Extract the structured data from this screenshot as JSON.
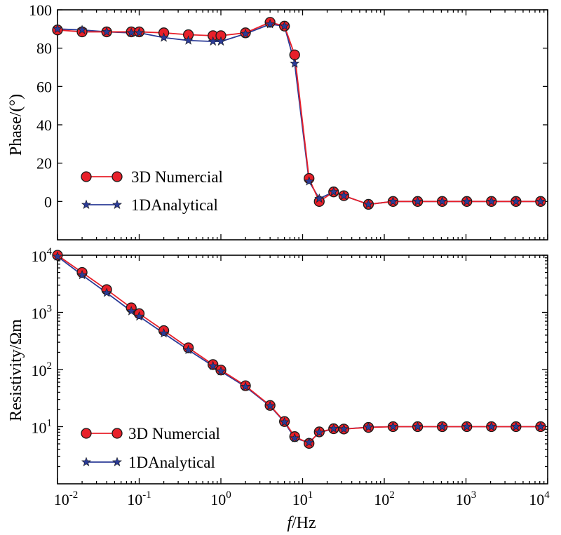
{
  "colors": {
    "numerical": "#e8202a",
    "analytical": "#2b3b97",
    "marker_edge": "#1a1a1a"
  },
  "xlabel_italic": "f",
  "xlabel_rest": "/Hz",
  "x_ticks": [
    {
      "base": "10",
      "exp": "-2"
    },
    {
      "base": "10",
      "exp": "-1"
    },
    {
      "base": "10",
      "exp": "0"
    },
    {
      "base": "10",
      "exp": "1"
    },
    {
      "base": "10",
      "exp": "2"
    },
    {
      "base": "10",
      "exp": "3"
    },
    {
      "base": "10",
      "exp": "4"
    }
  ],
  "chart_data": [
    {
      "type": "line",
      "title": "",
      "ylabel": "Phase/(°)",
      "xscale": "log",
      "xlim": [
        0.01,
        10000
      ],
      "ylim": [
        -20,
        100
      ],
      "y_ticks": [
        "0",
        "20",
        "40",
        "60",
        "80",
        "100"
      ],
      "legend": {
        "placement": "lower-left",
        "entries": [
          "3D Numercial",
          "1DAnalytical"
        ]
      },
      "x": [
        0.01,
        0.02,
        0.04,
        0.08,
        0.1,
        0.2,
        0.4,
        0.8,
        1,
        2,
        4,
        6,
        8,
        12,
        16,
        24,
        32,
        64,
        128,
        256,
        512,
        1024,
        2048,
        4096,
        8192
      ],
      "series": [
        {
          "name": "3D Numercial",
          "marker": "circle",
          "values": [
            89.5,
            88.5,
            88.5,
            88.5,
            88.5,
            88,
            87,
            86.5,
            86.5,
            88,
            93.5,
            91.5,
            76.5,
            12,
            0,
            5,
            3,
            -1.5,
            0,
            0,
            0,
            0,
            0,
            0,
            0
          ]
        },
        {
          "name": "1DAnalytical",
          "marker": "star",
          "values": [
            90,
            89.5,
            88.5,
            88,
            88,
            85.5,
            84,
            83.5,
            83.5,
            87.5,
            92.5,
            91.5,
            72,
            10.5,
            1.5,
            5,
            3,
            -1.5,
            0,
            0,
            0,
            0,
            0,
            0,
            0
          ]
        }
      ]
    },
    {
      "type": "line",
      "title": "",
      "ylabel": "Resistivity/Ωm",
      "xscale": "log",
      "yscale": "log",
      "xlim": [
        0.01,
        10000
      ],
      "ylim": [
        1,
        10000
      ],
      "y_ticks": [
        {
          "base": "10",
          "exp": "1"
        },
        {
          "base": "10",
          "exp": "2"
        },
        {
          "base": "10",
          "exp": "3"
        },
        {
          "base": "10",
          "exp": "4"
        }
      ],
      "legend": {
        "placement": "lower-left",
        "entries": [
          "3D Numercial",
          "1DAnalytical"
        ]
      },
      "x": [
        0.01,
        0.02,
        0.04,
        0.08,
        0.1,
        0.2,
        0.4,
        0.8,
        1,
        2,
        4,
        6,
        8,
        12,
        16,
        24,
        32,
        64,
        128,
        256,
        512,
        1024,
        2048,
        4096,
        8192
      ],
      "series": [
        {
          "name": "3D Numercial",
          "marker": "circle",
          "values": [
            10000,
            5000,
            2500,
            1200,
            950,
            480,
            240,
            122,
            98,
            52,
            23.5,
            12.3,
            6.7,
            5.1,
            8.1,
            9.2,
            9.1,
            9.7,
            10,
            10,
            10,
            10,
            10,
            10,
            10
          ]
        },
        {
          "name": "1DAnalytical",
          "marker": "star",
          "values": [
            9500,
            4500,
            2200,
            1050,
            850,
            430,
            220,
            115,
            93,
            50,
            23,
            12,
            6.3,
            5.3,
            7.9,
            9.2,
            9.1,
            9.8,
            10,
            10,
            10,
            10,
            10,
            10,
            10
          ]
        }
      ]
    }
  ]
}
